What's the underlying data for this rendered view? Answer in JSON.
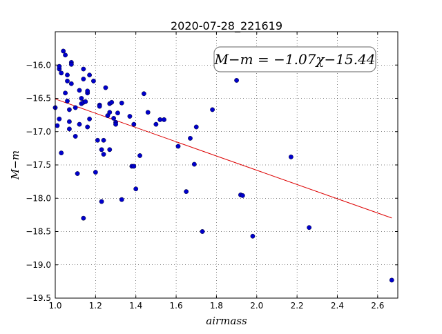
{
  "chart_data": {
    "type": "scatter",
    "title": "2020-07-28_221619",
    "xlabel": "airmass",
    "ylabel": "M−m",
    "xlim": [
      1.0,
      2.7
    ],
    "ylim": [
      -19.5,
      -15.5
    ],
    "y_inverted": true,
    "grid": true,
    "grid_style": "dotted",
    "xticks": [
      "1.0",
      "1.2",
      "1.4",
      "1.6",
      "1.8",
      "2.0",
      "2.2",
      "2.4",
      "2.6"
    ],
    "yticks": [
      "−16.0",
      "−16.5",
      "−17.0",
      "−17.5",
      "−18.0",
      "−18.5",
      "−19.0",
      "−19.5"
    ],
    "annotation": "M−m = −1.07χ−15.44",
    "colors": {
      "points": "#0000cc",
      "fit": "#dd0000"
    },
    "fit": {
      "slope": -1.07,
      "intercept": -15.44,
      "x_range": [
        1.0,
        2.67
      ]
    },
    "points": [
      [
        1.0,
        -16.64
      ],
      [
        1.01,
        -16.91
      ],
      [
        1.02,
        -16.06
      ],
      [
        1.02,
        -16.02
      ],
      [
        1.03,
        -16.12
      ],
      [
        1.02,
        -16.81
      ],
      [
        1.03,
        -17.32
      ],
      [
        1.04,
        -15.79
      ],
      [
        1.05,
        -15.85
      ],
      [
        1.05,
        -16.42
      ],
      [
        1.06,
        -16.15
      ],
      [
        1.06,
        -16.24
      ],
      [
        1.06,
        -16.54
      ],
      [
        1.07,
        -16.85
      ],
      [
        1.07,
        -16.67
      ],
      [
        1.07,
        -16.96
      ],
      [
        1.08,
        -15.96
      ],
      [
        1.08,
        -15.99
      ],
      [
        1.08,
        -16.28
      ],
      [
        1.1,
        -16.64
      ],
      [
        1.1,
        -17.07
      ],
      [
        1.11,
        -17.63
      ],
      [
        1.12,
        -16.89
      ],
      [
        1.12,
        -16.38
      ],
      [
        1.13,
        -16.5
      ],
      [
        1.13,
        -16.58
      ],
      [
        1.14,
        -16.06
      ],
      [
        1.14,
        -16.21
      ],
      [
        1.14,
        -16.56
      ],
      [
        1.15,
        -16.55
      ],
      [
        1.14,
        -18.3
      ],
      [
        1.16,
        -16.42
      ],
      [
        1.16,
        -16.39
      ],
      [
        1.16,
        -16.93
      ],
      [
        1.17,
        -16.81
      ],
      [
        1.17,
        -16.15
      ],
      [
        1.19,
        -16.24
      ],
      [
        1.2,
        -17.61
      ],
      [
        1.21,
        -17.13
      ],
      [
        1.22,
        -16.6
      ],
      [
        1.22,
        -16.62
      ],
      [
        1.23,
        -17.27
      ],
      [
        1.23,
        -18.05
      ],
      [
        1.24,
        -17.13
      ],
      [
        1.24,
        -17.34
      ],
      [
        1.25,
        -16.34
      ],
      [
        1.26,
        -16.76
      ],
      [
        1.27,
        -16.71
      ],
      [
        1.27,
        -17.27
      ],
      [
        1.27,
        -16.58
      ],
      [
        1.28,
        -16.56
      ],
      [
        1.29,
        -16.8
      ],
      [
        1.3,
        -16.86
      ],
      [
        1.3,
        -16.89
      ],
      [
        1.31,
        -16.72
      ],
      [
        1.33,
        -16.57
      ],
      [
        1.33,
        -18.02
      ],
      [
        1.37,
        -16.77
      ],
      [
        1.38,
        -17.52
      ],
      [
        1.39,
        -17.52
      ],
      [
        1.39,
        -16.89
      ],
      [
        1.4,
        -17.86
      ],
      [
        1.42,
        -17.36
      ],
      [
        1.44,
        -16.43
      ],
      [
        1.46,
        -16.71
      ],
      [
        1.5,
        -16.89
      ],
      [
        1.52,
        -16.82
      ],
      [
        1.54,
        -16.82
      ],
      [
        1.61,
        -17.22
      ],
      [
        1.65,
        -17.9
      ],
      [
        1.67,
        -17.1
      ],
      [
        1.69,
        -17.49
      ],
      [
        1.7,
        -16.93
      ],
      [
        1.73,
        -18.5
      ],
      [
        1.78,
        -16.67
      ],
      [
        1.9,
        -16.23
      ],
      [
        1.92,
        -17.95
      ],
      [
        1.93,
        -17.96
      ],
      [
        1.98,
        -18.57
      ],
      [
        2.17,
        -17.38
      ],
      [
        2.26,
        -18.44
      ],
      [
        2.67,
        -19.23
      ]
    ]
  }
}
